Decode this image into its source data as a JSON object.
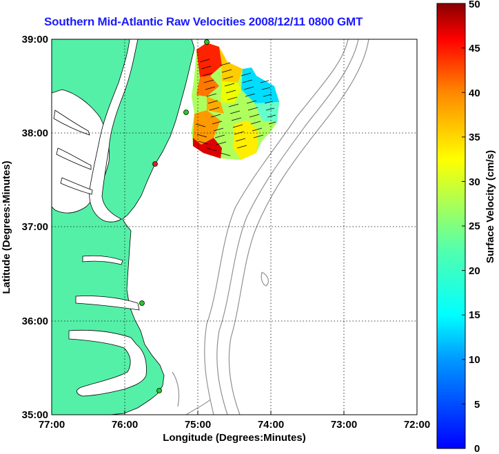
{
  "title": "Southern Mid-Atlantic Raw Velocities 2008/12/11 0800 GMT",
  "x_axis": {
    "label": "Longitude (Degrees:Minutes)",
    "ticks": [
      "77:00",
      "76:00",
      "75:00",
      "74:00",
      "73:00",
      "72:00"
    ]
  },
  "y_axis": {
    "label": "Latitude (Degrees:Minutes)",
    "ticks": [
      "39:00",
      "38:00",
      "37:00",
      "36:00",
      "35:00"
    ]
  },
  "colorbar": {
    "label": "Surface Velocity (cm/s)",
    "ticks": [
      "50",
      "45",
      "40",
      "35",
      "30",
      "25",
      "20",
      "15",
      "10",
      "5",
      "0"
    ],
    "min": 0,
    "max": 50
  },
  "colors": {
    "land": "#55f0a8",
    "water": "#ffffff",
    "title": "#1a1aff",
    "station_green": "#22cc22",
    "station_red": "#dd2222"
  },
  "extent": {
    "lon_min": -77,
    "lon_max": -72,
    "lat_min": 35,
    "lat_max": 39
  },
  "grid": "dotted"
}
